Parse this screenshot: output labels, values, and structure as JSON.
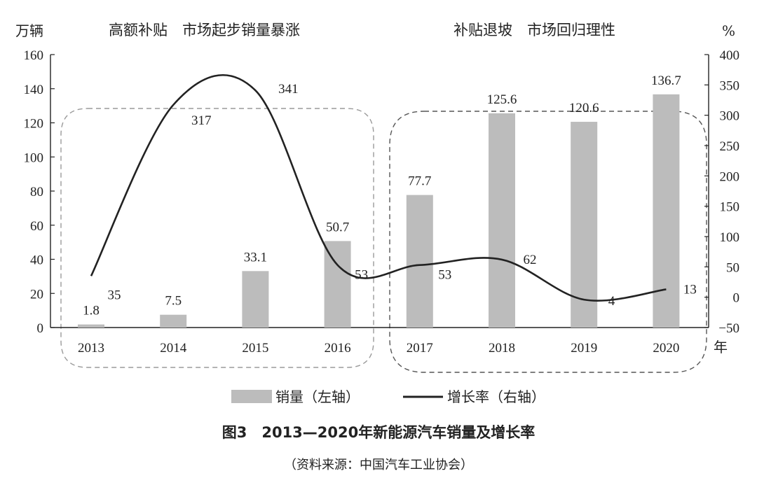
{
  "chart_data": {
    "type": "bar",
    "categories": [
      "2013",
      "2014",
      "2015",
      "2016",
      "2017",
      "2018",
      "2019",
      "2020"
    ],
    "series": [
      {
        "name": "销量（左轴）",
        "type": "bar",
        "axis": "left",
        "color": "#bcbcbc",
        "values": [
          1.8,
          7.5,
          33.1,
          50.7,
          77.7,
          125.6,
          120.6,
          136.7
        ]
      },
      {
        "name": "增长率（右轴）",
        "type": "line",
        "axis": "right",
        "color": "#222222",
        "values": [
          35,
          317,
          341,
          53,
          53,
          62,
          -4,
          13
        ]
      }
    ],
    "left_axis": {
      "label": "万辆",
      "range": [
        0,
        160
      ],
      "ticks": [
        "0",
        "20",
        "40",
        "60",
        "80",
        "100",
        "120",
        "140",
        "160"
      ]
    },
    "right_axis": {
      "label": "%",
      "range": [
        -50,
        400
      ],
      "ticks": [
        "−50",
        "0",
        "50",
        "100",
        "150",
        "200",
        "250",
        "300",
        "350",
        "400"
      ]
    },
    "x_axis": {
      "unit": "年"
    },
    "annotations": [
      {
        "text": "高额补贴　市场起步销量暴涨",
        "group": [
          "2013",
          "2014",
          "2015",
          "2016"
        ]
      },
      {
        "text": "补贴退坡　市场回归理性",
        "group": [
          "2017",
          "2018",
          "2019",
          "2020"
        ]
      }
    ],
    "bar_labels": [
      "1.8",
      "7.5",
      "33.1",
      "50.7",
      "77.7",
      "125.6",
      "120.6",
      "136.7"
    ],
    "line_labels": [
      "35",
      "317",
      "341",
      "53",
      "53",
      "62",
      "−4",
      "13"
    ],
    "legend": {
      "placement": "bottom",
      "items": [
        "销量（左轴）",
        "增长率（右轴）"
      ]
    },
    "grid": false
  },
  "figure": {
    "title": "图3　2013—2020年新能源汽车销量及增长率",
    "source": "（资料来源：中国汽车工业协会）"
  }
}
